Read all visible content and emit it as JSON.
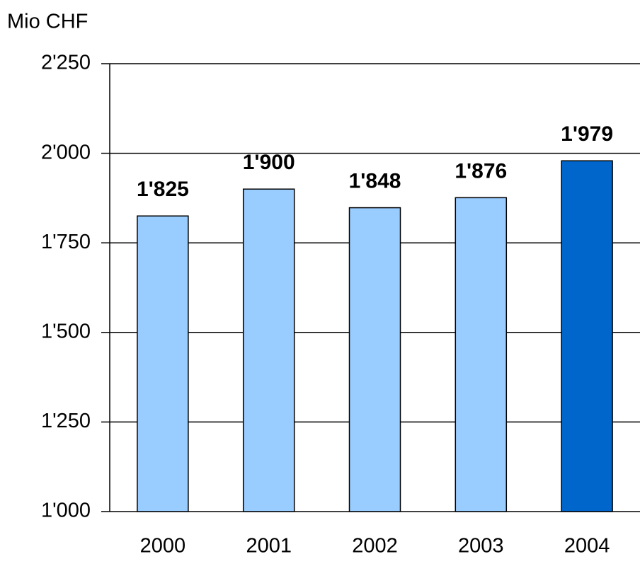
{
  "chart_data": {
    "type": "bar",
    "y_label": "Mio CHF",
    "categories": [
      "2000",
      "2001",
      "2002",
      "2003",
      "2004"
    ],
    "values": [
      1825,
      1900,
      1848,
      1876,
      1979
    ],
    "value_labels": [
      "1'825",
      "1'900",
      "1'848",
      "1'876",
      "1'979"
    ],
    "colors": [
      "#99ccff",
      "#99ccff",
      "#99ccff",
      "#99ccff",
      "#0066cc"
    ],
    "ylim": [
      1000,
      2250
    ],
    "yticks": [
      {
        "value": 1000,
        "label": "1'000"
      },
      {
        "value": 1250,
        "label": "1'250"
      },
      {
        "value": 1500,
        "label": "1'500"
      },
      {
        "value": 1750,
        "label": "1'750"
      },
      {
        "value": 2000,
        "label": "2'000"
      },
      {
        "value": 2250,
        "label": "2'250"
      }
    ],
    "grid": true
  }
}
